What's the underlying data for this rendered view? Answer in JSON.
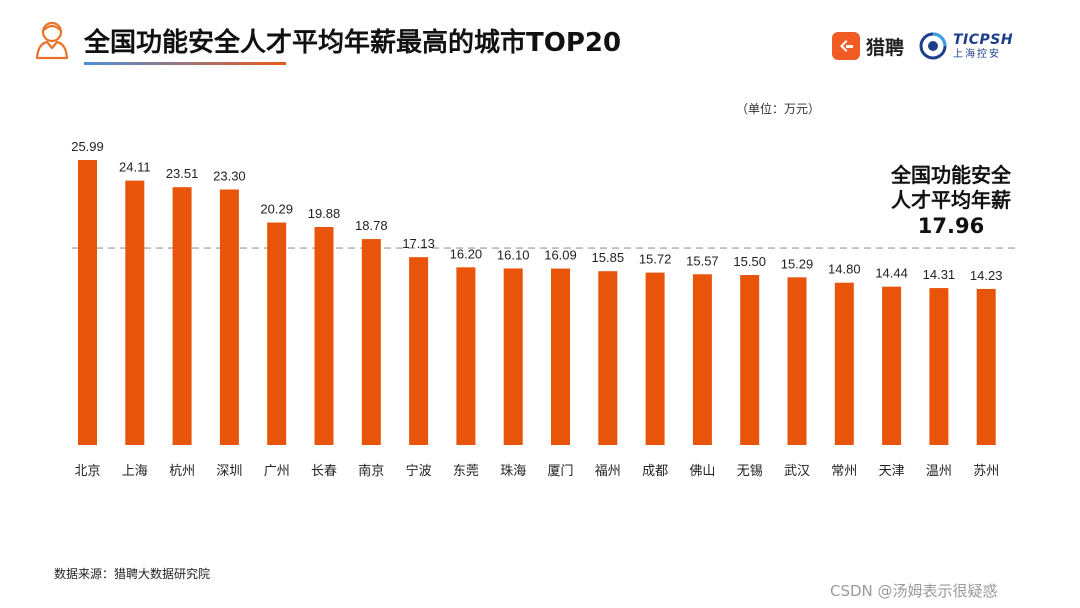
{
  "header": {
    "title": "全国功能安全人才平均年薪最高的城市TOP20",
    "logo_liepin": "猎聘",
    "logo_ticp_brand": "TICPSH",
    "logo_ticp_sub": "上海控安"
  },
  "unit": "（单位：万元）",
  "average_note": {
    "line1": "全国功能安全",
    "line2": "人才平均年薪",
    "value": "17.96"
  },
  "source": "数据来源：猎聘大数据研究院",
  "watermark": "CSDN @汤姆表示很疑惑",
  "colors": {
    "bar": "#e8540a",
    "avg_line": "#aaaaaa",
    "title_grad_start": "#4d8fd8",
    "title_grad_end": "#e85a1c"
  },
  "chart_data": {
    "type": "bar",
    "title": "全国功能安全人才平均年薪最高的城市TOP20",
    "xlabel": "",
    "ylabel": "（单位：万元）",
    "ylim": [
      0,
      26
    ],
    "grid": false,
    "categories": [
      "北京",
      "上海",
      "杭州",
      "深圳",
      "广州",
      "长春",
      "南京",
      "宁波",
      "东莞",
      "珠海",
      "厦门",
      "福州",
      "成都",
      "佛山",
      "无锡",
      "武汉",
      "常州",
      "天津",
      "温州",
      "苏州"
    ],
    "values": [
      25.99,
      24.11,
      23.51,
      23.3,
      20.29,
      19.88,
      18.78,
      17.13,
      16.2,
      16.1,
      16.09,
      15.85,
      15.72,
      15.57,
      15.5,
      15.29,
      14.8,
      14.44,
      14.31,
      14.23
    ],
    "value_labels": [
      "25.99",
      "24.11",
      "23.51",
      "23.30",
      "20.29",
      "19.88",
      "18.78",
      "17.13",
      "16.20",
      "16.10",
      "16.09",
      "15.85",
      "15.72",
      "15.57",
      "15.50",
      "15.29",
      "14.80",
      "14.44",
      "14.31",
      "14.23"
    ],
    "reference_line": {
      "label": "全国功能安全人才平均年薪",
      "value": 17.96
    }
  }
}
